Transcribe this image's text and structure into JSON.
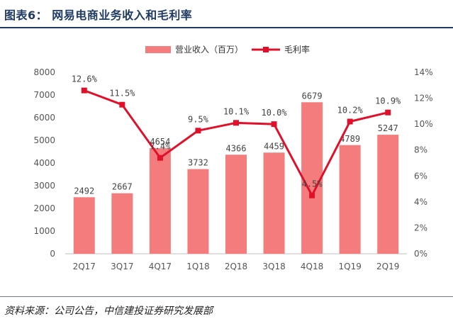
{
  "figure": {
    "title": "图表6： 网易电商业务收入和毛利率",
    "source": "资料来源：公司公告，中信建投证券研究发展部"
  },
  "chart_data": {
    "type": "bar",
    "categories": [
      "2Q17",
      "3Q17",
      "4Q17",
      "1Q18",
      "2Q18",
      "3Q18",
      "4Q18",
      "1Q19",
      "2Q19"
    ],
    "series": [
      {
        "name": "营业收入（百万）",
        "type": "bar",
        "axis": "left",
        "values": [
          2492,
          2667,
          4654,
          3732,
          4366,
          4459,
          6679,
          4789,
          5247
        ],
        "labels": [
          "2492",
          "2667",
          "4654",
          "3732",
          "4366",
          "4459",
          "6679",
          "4789",
          "5247"
        ],
        "color": "#f47c7c"
      },
      {
        "name": "毛利率",
        "type": "line",
        "axis": "right",
        "values": [
          12.6,
          11.5,
          7.4,
          9.5,
          10.1,
          10.0,
          4.5,
          10.2,
          10.9
        ],
        "labels": [
          "12.6%",
          "11.5%",
          "7.4%",
          "9.5%",
          "10.1%",
          "10.0%",
          "4.5%",
          "10.2%",
          "10.9%"
        ],
        "color": "#e0102a"
      }
    ],
    "y_left": {
      "min": 0,
      "max": 8000,
      "ticks": [
        "0",
        "1000",
        "2000",
        "3000",
        "4000",
        "5000",
        "6000",
        "7000",
        "8000"
      ]
    },
    "y_right": {
      "min": 0,
      "max": 14,
      "ticks": [
        "0%",
        "2%",
        "4%",
        "6%",
        "8%",
        "10%",
        "12%",
        "14%"
      ]
    },
    "legend_position": "top-center",
    "grid": false
  }
}
